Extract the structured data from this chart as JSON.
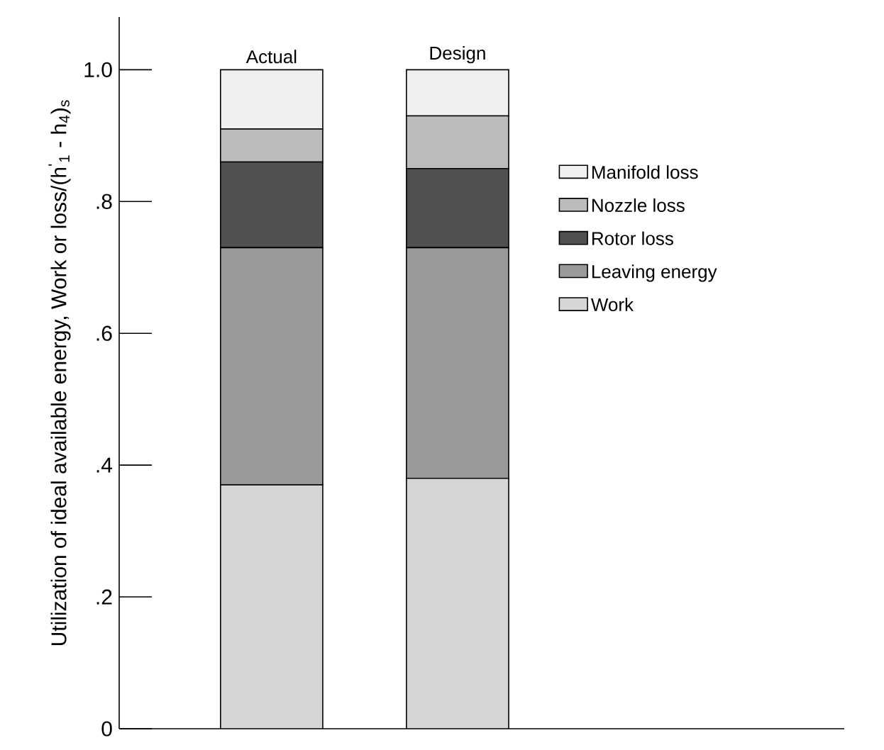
{
  "chart_data": {
    "type": "bar",
    "stacked": true,
    "ylabel": "Utilization of ideal available energy,  Work or loss/(h$^{'}$$_{1}$ - h$_{4}$)$_{s}$",
    "categories": [
      "Actual",
      "Design"
    ],
    "series": [
      {
        "name": "Work",
        "color": "#d6d6d6",
        "values": [
          0.37,
          0.38
        ]
      },
      {
        "name": "Leaving energy",
        "color": "#9a9a9a",
        "values": [
          0.36,
          0.35
        ]
      },
      {
        "name": "Rotor loss",
        "color": "#505050",
        "values": [
          0.13,
          0.12
        ]
      },
      {
        "name": "Nozzle loss",
        "color": "#bcbcbc",
        "values": [
          0.05,
          0.08
        ]
      },
      {
        "name": "Manifold loss",
        "color": "#f0f0f0",
        "values": [
          0.09,
          0.07
        ]
      }
    ],
    "ylim": [
      0,
      1.08
    ],
    "yticks": [
      0,
      {
        "value": 0.2,
        "label": ".2"
      },
      {
        "value": 0.4,
        "label": ".4"
      },
      {
        "value": 0.6,
        "label": ".6"
      },
      {
        "value": 0.8,
        "label": ".8"
      },
      {
        "value": 1.0,
        "label": "1.0"
      }
    ],
    "legend": "right",
    "grid": false
  }
}
